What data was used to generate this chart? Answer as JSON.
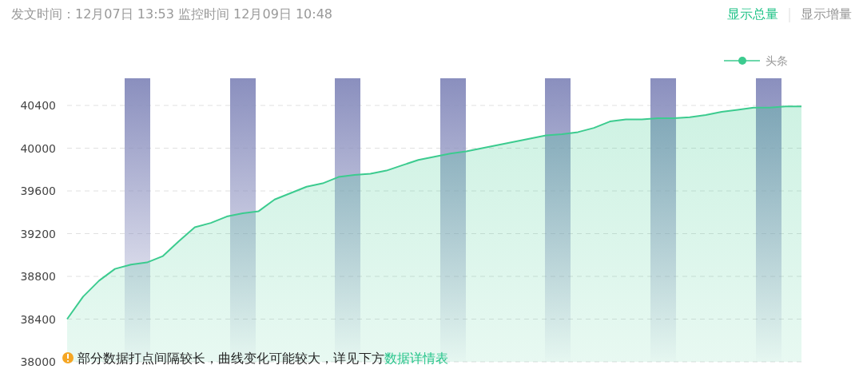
{
  "chart_data": {
    "type": "area",
    "title": "发文时间：12月07日 13:53 监控时间 12月09日 10:48",
    "categories": [
      null,
      null,
      null,
      null,
      null,
      null,
      null,
      null,
      null,
      null,
      null,
      null,
      null,
      null,
      null,
      null,
      null,
      null,
      null,
      null,
      null,
      null,
      null,
      null,
      null,
      null,
      null,
      null,
      null,
      null,
      null,
      null,
      null,
      null,
      null,
      null,
      null,
      null,
      null,
      null,
      null,
      null,
      null,
      null,
      null,
      null,
      null
    ],
    "series": [
      {
        "name": "头条",
        "color": "#3ccb8f",
        "values": [
          38400,
          38610,
          38760,
          38870,
          38910,
          38930,
          38990,
          39130,
          39260,
          39300,
          39360,
          39390,
          39410,
          39520,
          39580,
          39640,
          39670,
          39730,
          39750,
          39760,
          39790,
          39840,
          39890,
          39920,
          39950,
          39970,
          40000,
          40030,
          40060,
          40090,
          40120,
          40130,
          40150,
          40190,
          40250,
          40270,
          40270,
          40280,
          40280,
          40290,
          40310,
          40340,
          40360,
          40380,
          40380,
          40390,
          40390
        ]
      }
    ],
    "ylim": [
      38000,
      40400
    ],
    "yticks": [
      38000,
      38400,
      38800,
      39200,
      39600,
      40000,
      40400
    ],
    "grid": "y",
    "legend": "top right",
    "annotations": [
      "显示总量",
      "显示增量",
      "部分数据打点间隔较长，曲线变化可能较大，详见下方",
      "数据详情表"
    ]
  }
}
